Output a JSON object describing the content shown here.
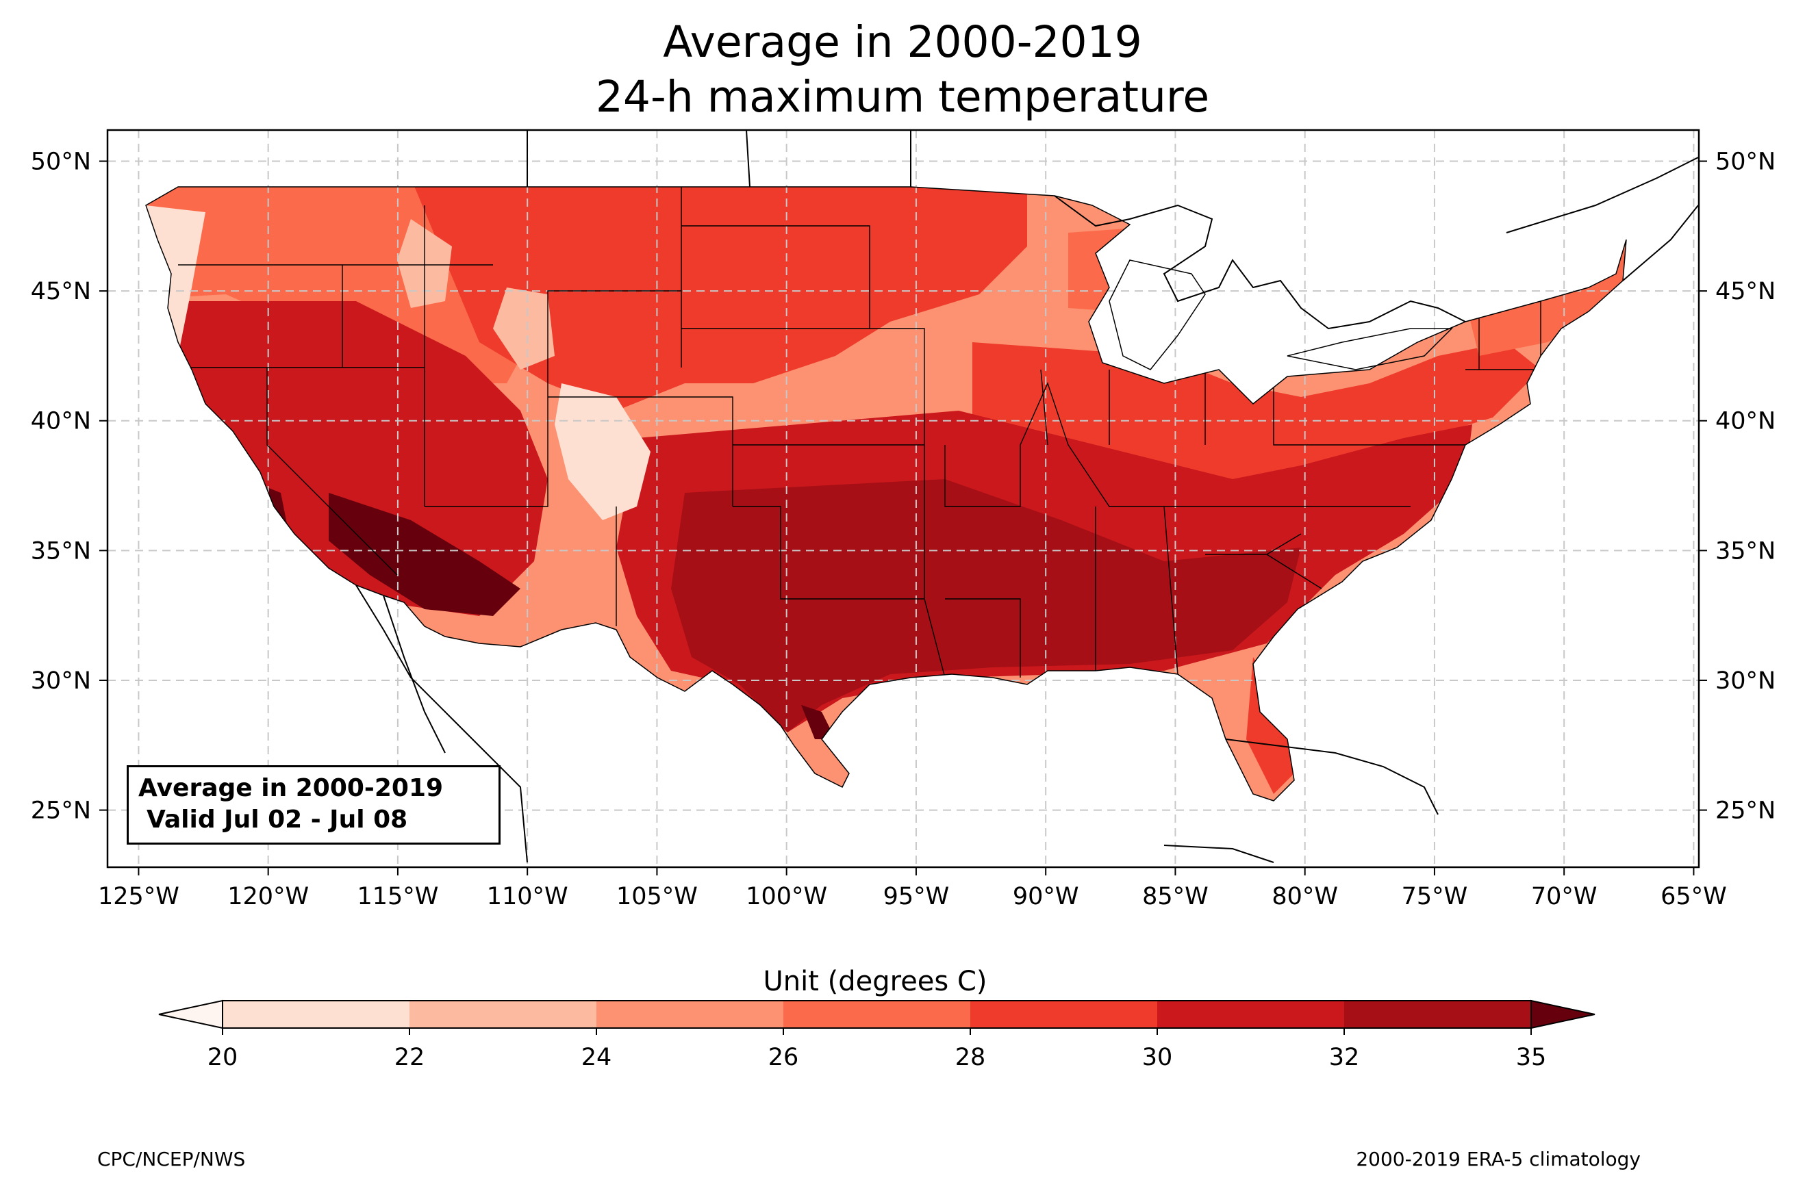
{
  "title": {
    "line1": "Average in 2000-2019",
    "line2": "24-h maximum temperature"
  },
  "info_box": {
    "line1": "Average in 2000-2019",
    "line2": "Valid Jul 02 - Jul 08"
  },
  "colorbar": {
    "title": "Unit (degrees C)",
    "ticks": [
      "20",
      "22",
      "24",
      "26",
      "28",
      "30",
      "32",
      "35"
    ],
    "colors": [
      "#fee0d2",
      "#fcbba1",
      "#fc9272",
      "#fb6a4a",
      "#ef3b2c",
      "#cb181d",
      "#a50f15"
    ],
    "under_color": "#fff5f0",
    "over_color": "#67000d"
  },
  "axes": {
    "lat_labels": [
      "25°N",
      "30°N",
      "35°N",
      "40°N",
      "45°N",
      "50°N"
    ],
    "lon_labels": [
      "125°W",
      "120°W",
      "115°W",
      "110°W",
      "105°W",
      "100°W",
      "95°W",
      "90°W",
      "85°W",
      "80°W",
      "75°W",
      "70°W",
      "65°W"
    ],
    "lat_values": [
      25,
      30,
      35,
      40,
      45,
      50
    ],
    "lon_values": [
      -125,
      -120,
      -115,
      -110,
      -105,
      -100,
      -95,
      -90,
      -85,
      -80,
      -75,
      -70,
      -65
    ],
    "lon_range": [
      -126.2,
      -64.8
    ],
    "lat_range": [
      22.8,
      51.2
    ],
    "gridlines": true
  },
  "credits": {
    "left": "CPC/NCEP/NWS",
    "right": "2000-2019 ERA-5 climatology"
  }
}
